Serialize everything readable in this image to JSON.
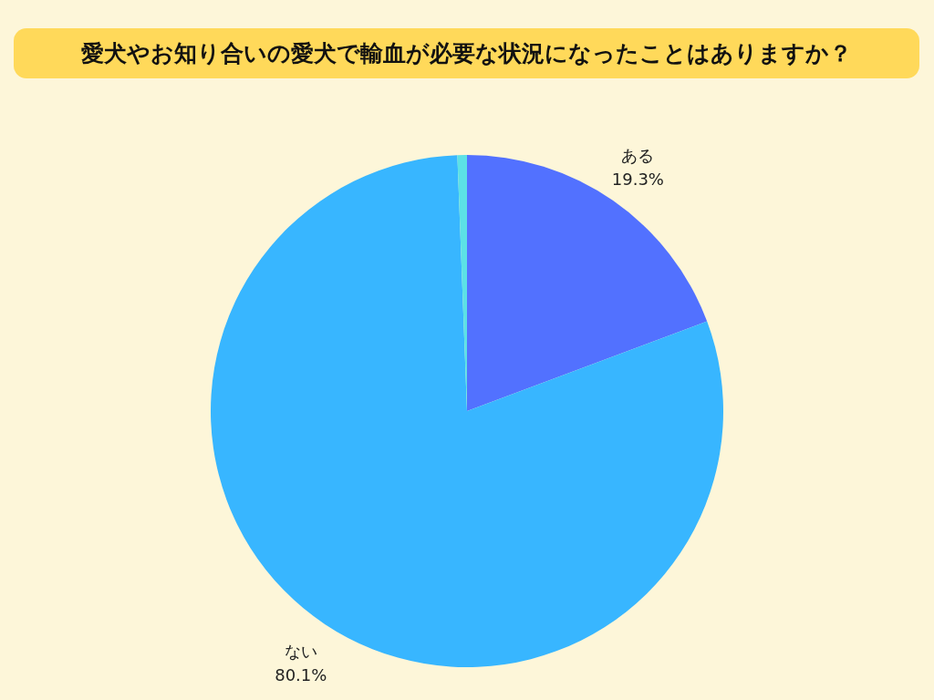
{
  "chart_data": {
    "type": "pie",
    "title": "愛犬やお知り合いの愛犬で輸血が必要な状況になったことはありますか？",
    "categories": [
      "ある",
      "ない",
      null
    ],
    "values": [
      19.3,
      80.1,
      0.6
    ],
    "colors": [
      "#5271ff",
      "#38b6ff",
      "#5ce1e6"
    ],
    "value_labels": [
      "19.3%",
      "80.1%",
      null
    ]
  }
}
